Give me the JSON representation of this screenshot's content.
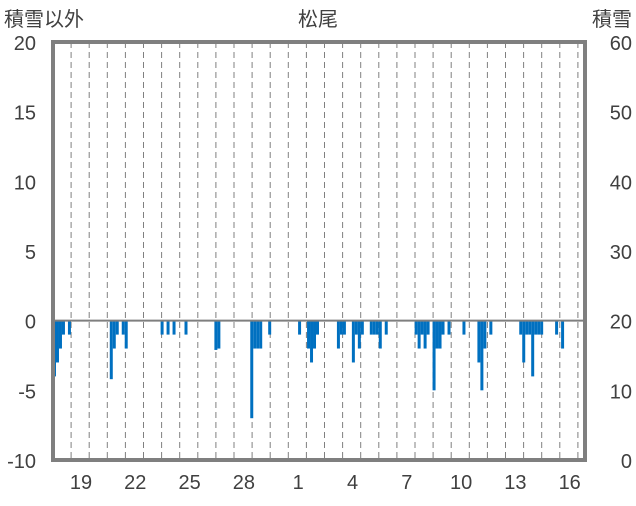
{
  "chart_data": {
    "type": "bar",
    "title": "松尾",
    "left_axis_label": "積雪以外",
    "right_axis_label": "積雪",
    "y_left": {
      "min": -10,
      "max": 20,
      "ticks": [
        20,
        15,
        10,
        5,
        0,
        -5,
        -10
      ]
    },
    "y_right": {
      "min": 0,
      "max": 60,
      "ticks": [
        60,
        50,
        40,
        30,
        20,
        10,
        0
      ]
    },
    "x_tick_labels": [
      "19",
      "22",
      "25",
      "28",
      "1",
      "4",
      "7",
      "10",
      "13",
      "16"
    ],
    "grid": "vertical dashed gridlines",
    "bar_color": "#0070c0",
    "frame_color": "#7f7f7f",
    "series": [
      {
        "values": [
          -4,
          -3,
          -2,
          -1,
          0,
          -1,
          0,
          0,
          0,
          0,
          0,
          0,
          0,
          0,
          0,
          0,
          0,
          0,
          0,
          -4.2,
          -2,
          -1,
          0,
          -1,
          -2,
          0,
          0,
          0,
          0,
          0,
          0,
          0,
          0,
          0,
          0,
          0,
          -1,
          0,
          -1,
          0,
          -1,
          0,
          0,
          0,
          -1,
          0,
          0,
          0,
          0,
          0,
          0,
          0,
          0,
          0,
          -2.1,
          -2,
          0,
          0,
          0,
          0,
          0,
          0,
          0,
          0,
          0,
          0,
          -7,
          -2,
          -2,
          -2,
          0,
          0,
          -1,
          0,
          0,
          0,
          0,
          0,
          0,
          0,
          0,
          0,
          -1,
          0,
          0,
          -2,
          -3,
          -2,
          -1,
          0,
          0,
          0,
          0,
          0,
          0,
          -2,
          -1,
          -1,
          0,
          0,
          -3,
          -1,
          -2,
          -1,
          0,
          0,
          -1,
          -1,
          -1,
          -2,
          0,
          -1,
          0,
          0,
          0,
          0,
          0,
          0,
          0,
          0,
          0,
          -1,
          -2,
          -1,
          -2,
          -1,
          0,
          -5,
          -2,
          -2,
          -1,
          0,
          -1,
          0,
          0,
          0,
          0,
          -1,
          0,
          0,
          0,
          0,
          -3,
          -5,
          -2,
          0,
          -1,
          0,
          0,
          0,
          0,
          0,
          0,
          0,
          0,
          0,
          -1,
          -3,
          -1,
          -1,
          -4,
          -1,
          -1,
          -1,
          0,
          0,
          0,
          0,
          -1,
          0,
          -2,
          0,
          0,
          0,
          0,
          0,
          0,
          0
        ]
      }
    ]
  }
}
